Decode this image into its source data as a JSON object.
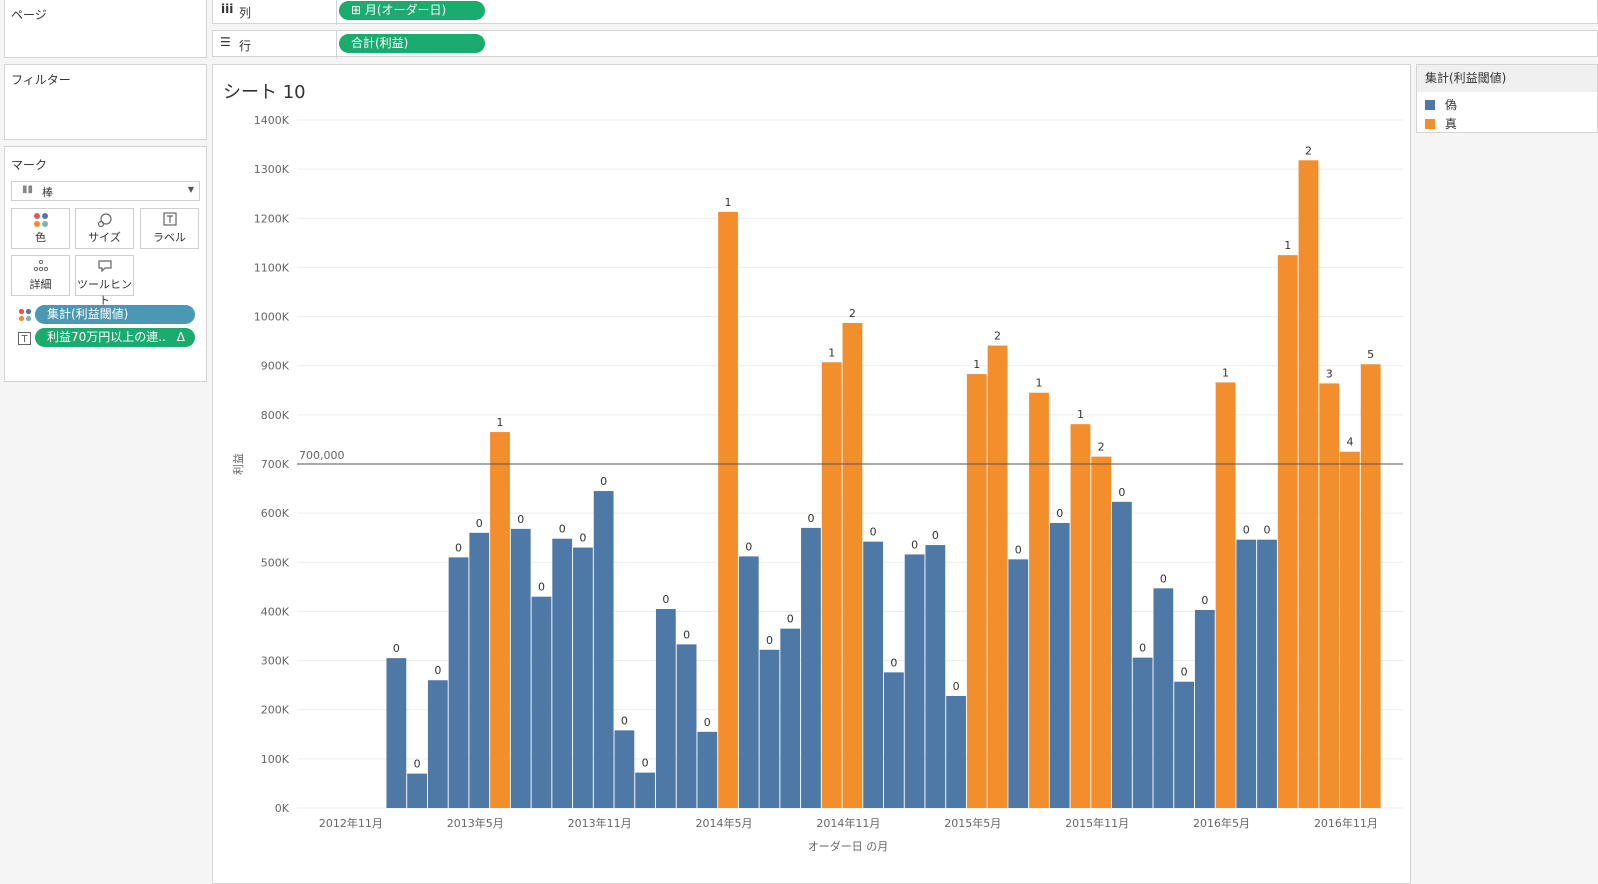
{
  "pages": {
    "title": "ページ"
  },
  "columns": {
    "icon": "iii",
    "label": "列",
    "pill": "⊞ 月(オーダー日)"
  },
  "rows": {
    "icon": "☰",
    "label": "行",
    "pill": "合計(利益)"
  },
  "filters": {
    "title": "フィルター"
  },
  "marks": {
    "title": "マーク",
    "type": "棒",
    "buttons": [
      {
        "name": "color",
        "label": "色"
      },
      {
        "name": "size",
        "label": "サイズ"
      },
      {
        "name": "label",
        "label": "ラベル"
      },
      {
        "name": "detail",
        "label": "詳細"
      },
      {
        "name": "tooltip",
        "label": "ツールヒント"
      }
    ],
    "pill_color": "集計(利益閾値)",
    "pill_label": "利益70万円以上の連..",
    "pill_label_delta": "Δ"
  },
  "sheet": {
    "title": "シート 10"
  },
  "legend": {
    "title": "集計(利益閾値)",
    "items": [
      {
        "label": "偽",
        "color": "#4e79a7"
      },
      {
        "label": "真",
        "color": "#f28e2b"
      }
    ]
  },
  "colors": {
    "false": "#4e79a7",
    "true": "#f28e2b",
    "pill_green": "#1aab6f",
    "pill_teal": "#4a98b4"
  },
  "chart_data": {
    "type": "bar",
    "title": "シート 10",
    "xlabel": "オーダー日 の月",
    "ylabel": "利益",
    "ylim": [
      0,
      1400000
    ],
    "y_ticks": [
      "0K",
      "100K",
      "200K",
      "300K",
      "400K",
      "500K",
      "600K",
      "700K",
      "800K",
      "900K",
      "1000K",
      "1100K",
      "1200K",
      "1300K",
      "1400K"
    ],
    "x_tick_labels": [
      {
        "label": "2012年11月",
        "index": 0
      },
      {
        "label": "2013年5月",
        "index": 6
      },
      {
        "label": "2013年11月",
        "index": 12
      },
      {
        "label": "2014年5月",
        "index": 18
      },
      {
        "label": "2014年11月",
        "index": 24
      },
      {
        "label": "2015年5月",
        "index": 30
      },
      {
        "label": "2015年11月",
        "index": 36
      },
      {
        "label": "2016年5月",
        "index": 42
      },
      {
        "label": "2016年11月",
        "index": 48
      }
    ],
    "reference_line": {
      "value": 700000,
      "label": "700,000"
    },
    "bars": [
      {
        "v": null,
        "c": false,
        "l": ""
      },
      {
        "v": null,
        "c": false,
        "l": ""
      },
      {
        "v": 305000,
        "c": false,
        "l": "0"
      },
      {
        "v": 70000,
        "c": false,
        "l": "0"
      },
      {
        "v": 260000,
        "c": false,
        "l": "0"
      },
      {
        "v": 510000,
        "c": false,
        "l": "0"
      },
      {
        "v": 560000,
        "c": false,
        "l": "0"
      },
      {
        "v": 765000,
        "c": true,
        "l": "1"
      },
      {
        "v": 568000,
        "c": false,
        "l": "0"
      },
      {
        "v": 430000,
        "c": false,
        "l": "0"
      },
      {
        "v": 548000,
        "c": false,
        "l": "0"
      },
      {
        "v": 530000,
        "c": false,
        "l": "0"
      },
      {
        "v": 645000,
        "c": false,
        "l": "0"
      },
      {
        "v": 158000,
        "c": false,
        "l": "0"
      },
      {
        "v": 72000,
        "c": false,
        "l": "0"
      },
      {
        "v": 405000,
        "c": false,
        "l": "0"
      },
      {
        "v": 333000,
        "c": false,
        "l": "0"
      },
      {
        "v": 155000,
        "c": false,
        "l": "0"
      },
      {
        "v": 1213000,
        "c": true,
        "l": "1"
      },
      {
        "v": 512000,
        "c": false,
        "l": "0"
      },
      {
        "v": 322000,
        "c": false,
        "l": "0"
      },
      {
        "v": 365000,
        "c": false,
        "l": "0"
      },
      {
        "v": 570000,
        "c": false,
        "l": "0"
      },
      {
        "v": 907000,
        "c": true,
        "l": "1"
      },
      {
        "v": 987000,
        "c": true,
        "l": "2"
      },
      {
        "v": 542000,
        "c": false,
        "l": "0"
      },
      {
        "v": 276000,
        "c": false,
        "l": "0"
      },
      {
        "v": 516000,
        "c": false,
        "l": "0"
      },
      {
        "v": 535000,
        "c": false,
        "l": "0"
      },
      {
        "v": 228000,
        "c": false,
        "l": "0"
      },
      {
        "v": 883000,
        "c": true,
        "l": "1"
      },
      {
        "v": 941000,
        "c": true,
        "l": "2"
      },
      {
        "v": 506000,
        "c": false,
        "l": "0"
      },
      {
        "v": 845000,
        "c": true,
        "l": "1"
      },
      {
        "v": 580000,
        "c": false,
        "l": "0"
      },
      {
        "v": 781000,
        "c": true,
        "l": "1"
      },
      {
        "v": 715000,
        "c": true,
        "l": "2"
      },
      {
        "v": 623000,
        "c": false,
        "l": "0"
      },
      {
        "v": 306000,
        "c": false,
        "l": "0"
      },
      {
        "v": 447000,
        "c": false,
        "l": "0"
      },
      {
        "v": 257000,
        "c": false,
        "l": "0"
      },
      {
        "v": 403000,
        "c": false,
        "l": "0"
      },
      {
        "v": 866000,
        "c": true,
        "l": "1"
      },
      {
        "v": 546000,
        "c": false,
        "l": "0"
      },
      {
        "v": 546000,
        "c": false,
        "l": "0"
      },
      {
        "v": 1125000,
        "c": true,
        "l": "1"
      },
      {
        "v": 1318000,
        "c": true,
        "l": "2"
      },
      {
        "v": 864000,
        "c": true,
        "l": "3"
      },
      {
        "v": 725000,
        "c": true,
        "l": "4"
      },
      {
        "v": 903000,
        "c": true,
        "l": "5"
      }
    ]
  }
}
